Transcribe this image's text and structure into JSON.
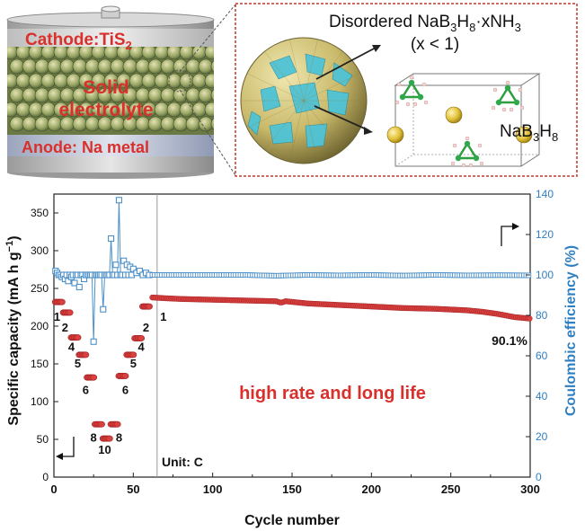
{
  "schematic": {
    "cathode_label_main": "Cathode:TiS",
    "cathode_label_sub": "2",
    "electrolyte_line1": "Solid",
    "electrolyte_line2": "electrolyte",
    "anode_label": "Anode: Na metal",
    "inset_line1_prefix": "Disordered NaB",
    "inset_line1_sub1": "3",
    "inset_line1_mid": "H",
    "inset_line1_sub2": "8",
    "inset_line1_suffix": "·xNH",
    "inset_line1_sub3": "3",
    "inset_line2": "(x < 1)",
    "crystal_label_prefix": "NaB",
    "crystal_label_sub1": "3",
    "crystal_label_mid": "H",
    "crystal_label_sub2": "8",
    "colors": {
      "cathode_red": "#d9302c",
      "anode_red": "#d9302c",
      "sphere_gold": "#c9b96a",
      "sphere_cyan": "#4fc3d6",
      "inset_border": "#c0392b"
    }
  },
  "chart_data": {
    "type": "scatter",
    "xlabel": "Cycle number",
    "ylabel_left_prefix": "Specific capacity (mA h g",
    "ylabel_left_sup": "−1",
    "ylabel_left_suffix": ")",
    "ylabel_right": "Coulombic efficiency (%)",
    "xlim": [
      0,
      300
    ],
    "ylim_left": [
      0,
      375
    ],
    "ylim_right": [
      0,
      140
    ],
    "xticks": [
      0,
      50,
      100,
      150,
      200,
      250,
      300
    ],
    "yticks_left": [
      0,
      50,
      100,
      150,
      200,
      250,
      300,
      350
    ],
    "yticks_right": [
      0,
      20,
      40,
      60,
      80,
      100,
      120,
      140
    ],
    "divider_x": 65,
    "unit_text": "Unit: C",
    "annotation_main": "high rate and long life",
    "annotation_retention": "90.1%",
    "rate_labels": [
      {
        "text": "1",
        "x": 2,
        "y": 207
      },
      {
        "text": "2",
        "x": 7,
        "y": 193
      },
      {
        "text": "4",
        "x": 11,
        "y": 167
      },
      {
        "text": "5",
        "x": 15,
        "y": 145
      },
      {
        "text": "6",
        "x": 20,
        "y": 110
      },
      {
        "text": "8",
        "x": 25,
        "y": 47
      },
      {
        "text": "10",
        "x": 32,
        "y": 31
      },
      {
        "text": "8",
        "x": 41,
        "y": 47
      },
      {
        "text": "6",
        "x": 45,
        "y": 110
      },
      {
        "text": "5",
        "x": 50,
        "y": 145
      },
      {
        "text": "4",
        "x": 55,
        "y": 167
      },
      {
        "text": "2",
        "x": 58,
        "y": 193
      },
      {
        "text": "1",
        "x": 69,
        "y": 207
      }
    ],
    "capacity_series": {
      "name": "",
      "axis": "left",
      "color": "#d94040",
      "rate_steps": [
        {
          "x_start": 1,
          "x_end": 5,
          "y": 232
        },
        {
          "x_start": 6,
          "x_end": 10,
          "y": 218
        },
        {
          "x_start": 11,
          "x_end": 15,
          "y": 185
        },
        {
          "x_start": 16,
          "x_end": 20,
          "y": 162
        },
        {
          "x_start": 21,
          "x_end": 25,
          "y": 132
        },
        {
          "x_start": 26,
          "x_end": 30,
          "y": 70
        },
        {
          "x_start": 31,
          "x_end": 35,
          "y": 51
        },
        {
          "x_start": 36,
          "x_end": 40,
          "y": 70
        },
        {
          "x_start": 41,
          "x_end": 45,
          "y": 134
        },
        {
          "x_start": 46,
          "x_end": 50,
          "y": 162
        },
        {
          "x_start": 51,
          "x_end": 55,
          "y": 184
        },
        {
          "x_start": 56,
          "x_end": 60,
          "y": 226
        }
      ],
      "long_cycle": {
        "x": [
          62,
          70,
          80,
          100,
          120,
          140,
          143,
          146,
          160,
          180,
          200,
          220,
          240,
          260,
          270,
          280,
          290,
          300
        ],
        "y": [
          238,
          237,
          236,
          235,
          234,
          233,
          231,
          233,
          230,
          228,
          226,
          224,
          223,
          221,
          219,
          216,
          212,
          210
        ]
      }
    },
    "efficiency_series": {
      "name": "",
      "axis": "right",
      "color": "#4d90c8",
      "points": [
        {
          "x": 1,
          "y": 102
        },
        {
          "x": 2,
          "y": 101
        },
        {
          "x": 3,
          "y": 100
        },
        {
          "x": 4,
          "y": 100
        },
        {
          "x": 5,
          "y": 99
        },
        {
          "x": 6,
          "y": 100
        },
        {
          "x": 7,
          "y": 98
        },
        {
          "x": 8,
          "y": 100
        },
        {
          "x": 9,
          "y": 97
        },
        {
          "x": 10,
          "y": 100
        },
        {
          "x": 11,
          "y": 99
        },
        {
          "x": 12,
          "y": 100
        },
        {
          "x": 13,
          "y": 96
        },
        {
          "x": 14,
          "y": 100
        },
        {
          "x": 15,
          "y": 100
        },
        {
          "x": 16,
          "y": 94
        },
        {
          "x": 17,
          "y": 100
        },
        {
          "x": 18,
          "y": 100
        },
        {
          "x": 19,
          "y": 98
        },
        {
          "x": 20,
          "y": 100
        },
        {
          "x": 21,
          "y": 100
        },
        {
          "x": 22,
          "y": 100
        },
        {
          "x": 23,
          "y": 100
        },
        {
          "x": 24,
          "y": 100
        },
        {
          "x": 25,
          "y": 67
        },
        {
          "x": 26,
          "y": 100
        },
        {
          "x": 27,
          "y": 100
        },
        {
          "x": 28,
          "y": 100
        },
        {
          "x": 29,
          "y": 100
        },
        {
          "x": 30,
          "y": 100
        },
        {
          "x": 31,
          "y": 83
        },
        {
          "x": 32,
          "y": 100
        },
        {
          "x": 33,
          "y": 100
        },
        {
          "x": 34,
          "y": 100
        },
        {
          "x": 35,
          "y": 100
        },
        {
          "x": 36,
          "y": 118
        },
        {
          "x": 37,
          "y": 100
        },
        {
          "x": 38,
          "y": 100
        },
        {
          "x": 39,
          "y": 105
        },
        {
          "x": 40,
          "y": 100
        },
        {
          "x": 41,
          "y": 137
        },
        {
          "x": 42,
          "y": 100
        },
        {
          "x": 43,
          "y": 100
        },
        {
          "x": 44,
          "y": 107
        },
        {
          "x": 45,
          "y": 100
        },
        {
          "x": 46,
          "y": 105
        },
        {
          "x": 47,
          "y": 100
        },
        {
          "x": 48,
          "y": 104
        },
        {
          "x": 49,
          "y": 100
        },
        {
          "x": 50,
          "y": 103
        },
        {
          "x": 52,
          "y": 101
        },
        {
          "x": 54,
          "y": 102
        },
        {
          "x": 56,
          "y": 100
        },
        {
          "x": 58,
          "y": 101
        },
        {
          "x": 60,
          "y": 100
        }
      ],
      "long_cycle": {
        "x": [
          62,
          80,
          100,
          120,
          140,
          160,
          180,
          200,
          220,
          240,
          260,
          280,
          300
        ],
        "y": [
          100,
          100,
          100,
          100,
          99.6,
          100,
          99.8,
          100,
          99.7,
          100,
          99.8,
          99.9,
          99.8
        ]
      },
      "excursion_lines": [
        {
          "x": [
            24,
            25,
            26
          ],
          "y": [
            100,
            67,
            100
          ]
        },
        {
          "x": [
            30,
            31,
            32
          ],
          "y": [
            100,
            83,
            100
          ]
        },
        {
          "x": [
            35,
            36,
            37
          ],
          "y": [
            100,
            118,
            100
          ]
        },
        {
          "x": [
            40,
            41,
            42
          ],
          "y": [
            100,
            137,
            100
          ]
        }
      ]
    }
  }
}
